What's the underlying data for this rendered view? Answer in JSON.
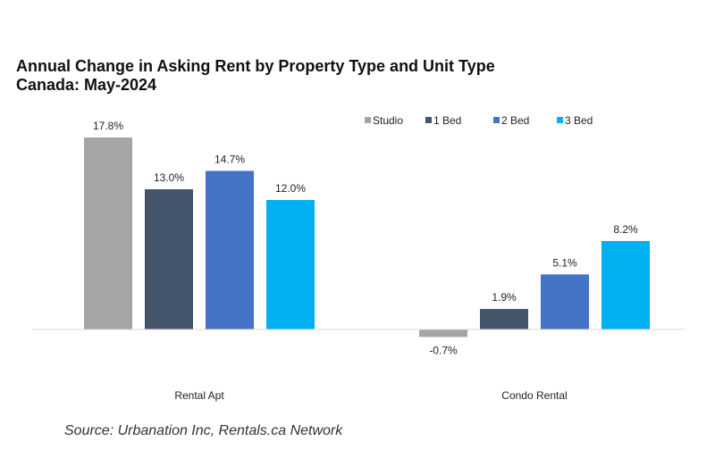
{
  "chart_data": {
    "type": "bar",
    "title": "Annual Change in Asking Rent by Property Type and Unit Type",
    "subtitle": "Canada: May-2024",
    "categories": [
      "Rental Apt",
      "Condo Rental"
    ],
    "series": [
      {
        "name": "Studio",
        "color": "#a5a5a5",
        "values": [
          17.8,
          -0.7
        ],
        "labels": [
          "17.8%",
          "-0.7%"
        ]
      },
      {
        "name": "1 Bed",
        "color": "#44546a",
        "values": [
          13.0,
          1.9
        ],
        "labels": [
          "13.0%",
          "1.9%"
        ]
      },
      {
        "name": "2 Bed",
        "color": "#4472c4",
        "values": [
          14.7,
          5.1
        ],
        "labels": [
          "14.7%",
          "5.1%"
        ]
      },
      {
        "name": "3 Bed",
        "color": "#00b0f0",
        "values": [
          12.0,
          8.2
        ],
        "labels": [
          "12.0%",
          "8.2%"
        ]
      }
    ],
    "value_unit": "%",
    "ylim": [
      -2,
      20
    ],
    "grid": false,
    "legend": "top-right",
    "xlabel": "",
    "ylabel": ""
  },
  "source": "Source: Urbanation Inc, Rentals.ca Network"
}
